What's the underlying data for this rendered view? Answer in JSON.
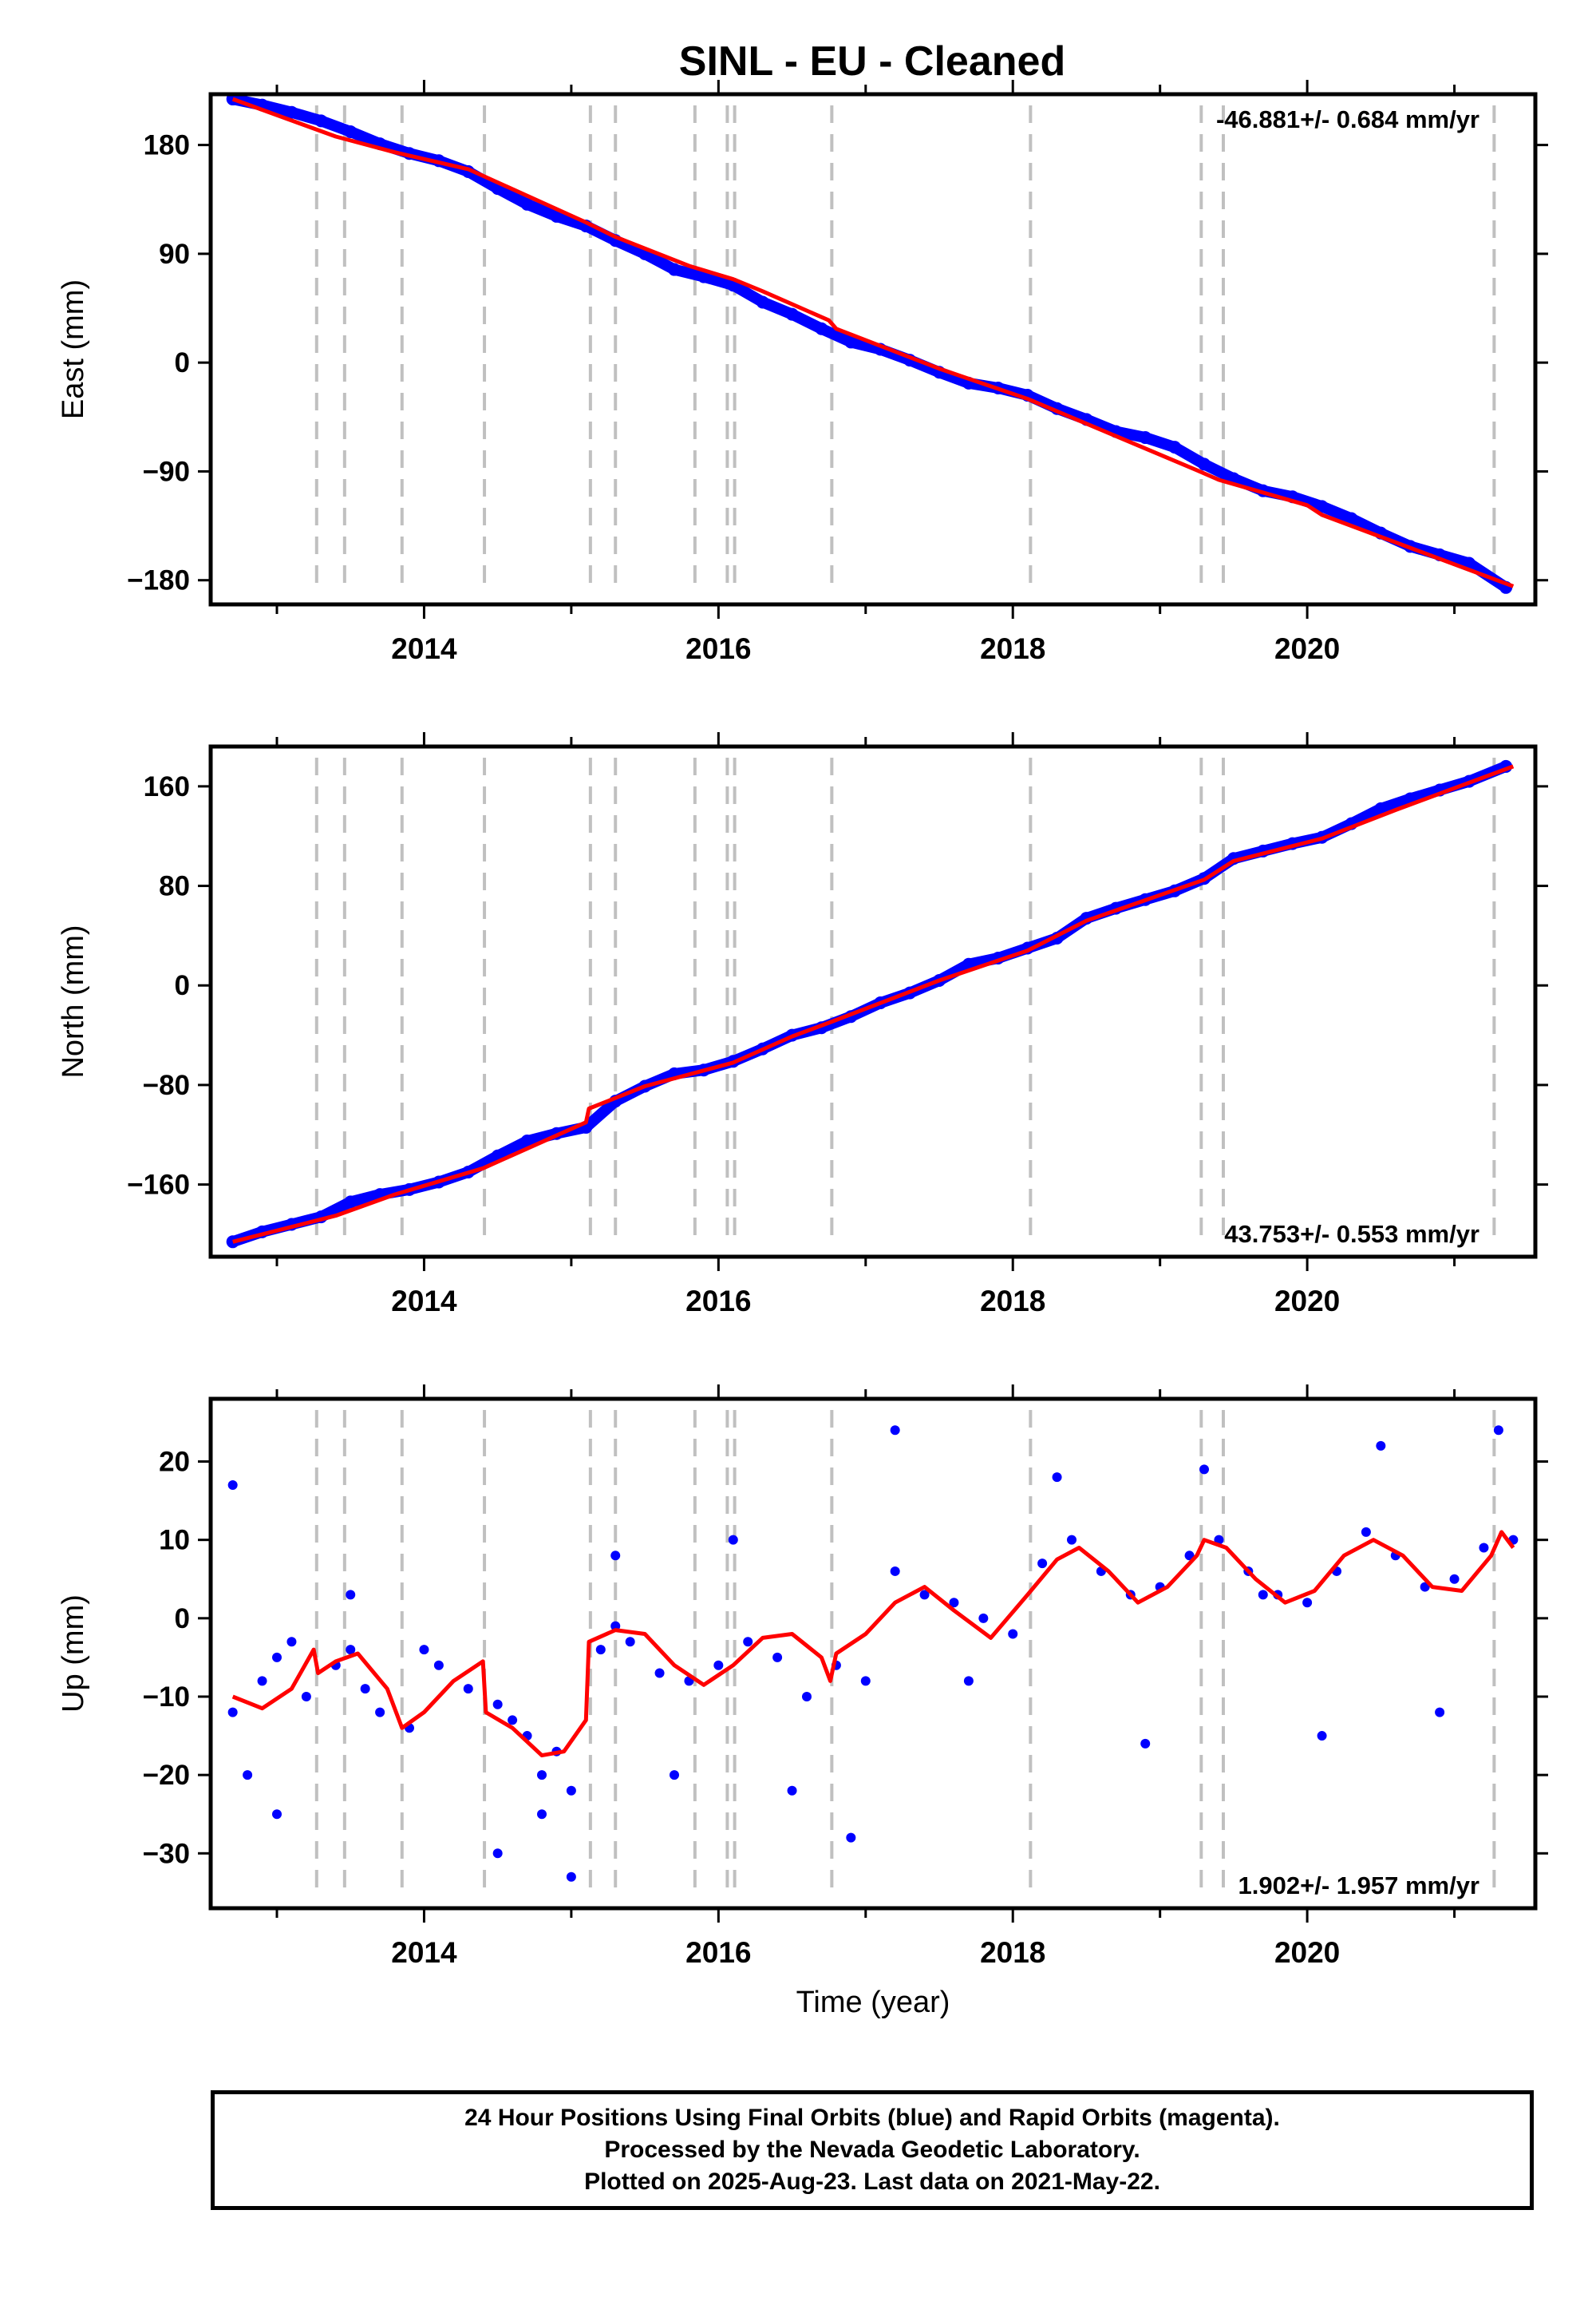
{
  "title": "SINL  - EU - Cleaned",
  "colors": {
    "data": "#0000ff",
    "model": "#ff0000",
    "offset": "#c0c0c0",
    "frame": "#000000"
  },
  "chart_data": [
    {
      "type": "scatter",
      "component": "east",
      "ylabel": "East (mm)",
      "xlim": [
        2012.55,
        2021.55
      ],
      "ylim": [
        -200,
        222
      ],
      "yticks": [
        180,
        90,
        0,
        -90,
        -180
      ],
      "xticks": [
        2014,
        2016,
        2018,
        2020
      ],
      "rate_label": "-46.881+/- 0.684 mm/yr",
      "rate_position": "top-right",
      "series": [
        {
          "kind": "points",
          "x": [
            2012.7,
            2012.9,
            2013.1,
            2013.3,
            2013.5,
            2013.7,
            2013.9,
            2014.1,
            2014.3,
            2014.5,
            2014.7,
            2014.9,
            2015.1,
            2015.3,
            2015.5,
            2015.7,
            2015.9,
            2016.1,
            2016.3,
            2016.5,
            2016.7,
            2016.9,
            2017.1,
            2017.3,
            2017.5,
            2017.7,
            2017.9,
            2018.1,
            2018.3,
            2018.5,
            2018.7,
            2018.9,
            2019.1,
            2019.3,
            2019.5,
            2019.7,
            2019.9,
            2020.1,
            2020.3,
            2020.5,
            2020.7,
            2020.9,
            2021.1,
            2021.35
          ],
          "y": [
            218,
            213,
            207,
            200,
            191,
            181,
            173,
            167,
            158,
            144,
            131,
            121,
            113,
            101,
            90,
            77,
            71,
            64,
            50,
            40,
            28,
            17,
            11,
            2,
            -8,
            -17,
            -21,
            -27,
            -38,
            -47,
            -57,
            -62,
            -70,
            -84,
            -96,
            -106,
            -111,
            -119,
            -129,
            -141,
            -152,
            -159,
            -166,
            -186
          ]
        },
        {
          "kind": "line",
          "x": [
            2012.7,
            2013.4,
            2013.8,
            2014.3,
            2015.1,
            2015.3,
            2015.8,
            2016.1,
            2016.3,
            2016.75,
            2016.8,
            2017.5,
            2018.1,
            2019.25,
            2019.4,
            2020.0,
            2020.1,
            2021.4
          ],
          "y": [
            218,
            187,
            174,
            160,
            116,
            104,
            80,
            69,
            59,
            35,
            28,
            -5,
            -30,
            -89,
            -97,
            -118,
            -126,
            -185
          ]
        }
      ]
    },
    {
      "type": "scatter",
      "component": "north",
      "ylabel": "North (mm)",
      "xlim": [
        2012.55,
        2021.55
      ],
      "ylim": [
        -218,
        192
      ],
      "yticks": [
        160,
        80,
        0,
        -80,
        -160
      ],
      "xticks": [
        2014,
        2016,
        2018,
        2020
      ],
      "rate_label": "43.753+/- 0.553 mm/yr",
      "rate_position": "bottom-right",
      "series": [
        {
          "kind": "points",
          "x": [
            2012.7,
            2012.9,
            2013.1,
            2013.3,
            2013.5,
            2013.7,
            2013.9,
            2014.1,
            2014.3,
            2014.5,
            2014.7,
            2014.9,
            2015.1,
            2015.3,
            2015.5,
            2015.7,
            2015.9,
            2016.1,
            2016.3,
            2016.5,
            2016.7,
            2016.9,
            2017.1,
            2017.3,
            2017.5,
            2017.7,
            2017.9,
            2018.1,
            2018.3,
            2018.5,
            2018.7,
            2018.9,
            2019.1,
            2019.3,
            2019.5,
            2019.7,
            2019.9,
            2020.1,
            2020.3,
            2020.5,
            2020.7,
            2020.9,
            2021.1,
            2021.35
          ],
          "y": [
            -206,
            -198,
            -192,
            -186,
            -174,
            -168,
            -164,
            -158,
            -150,
            -137,
            -125,
            -119,
            -114,
            -93,
            -81,
            -71,
            -68,
            -61,
            -51,
            -40,
            -34,
            -25,
            -14,
            -6,
            4,
            17,
            22,
            30,
            38,
            54,
            62,
            69,
            76,
            86,
            102,
            108,
            114,
            119,
            130,
            142,
            150,
            157,
            164,
            176
          ]
        },
        {
          "kind": "line",
          "x": [
            2012.7,
            2013.4,
            2013.8,
            2014.4,
            2015.1,
            2015.12,
            2015.5,
            2016.1,
            2016.5,
            2016.75,
            2017.5,
            2018.1,
            2018.5,
            2019.3,
            2019.5,
            2020.1,
            2020.6,
            2021.4
          ],
          "y": [
            -206,
            -185,
            -168,
            -147,
            -110,
            -99,
            -81,
            -62,
            -41,
            -30,
            4,
            28,
            52,
            85,
            100,
            118,
            141,
            176
          ]
        }
      ]
    },
    {
      "type": "scatter",
      "component": "up",
      "ylabel": "Up (mm)",
      "xlabel": "Time (year)",
      "xlim": [
        2012.55,
        2021.55
      ],
      "ylim": [
        -37,
        28
      ],
      "yticks": [
        20,
        10,
        0,
        -10,
        -20,
        -30
      ],
      "xticks": [
        2014,
        2016,
        2018,
        2020
      ],
      "rate_label": "1.902+/- 1.957 mm/yr",
      "rate_position": "bottom-right",
      "series": [
        {
          "kind": "points",
          "x": [
            2012.7,
            2012.8,
            2012.9,
            2013.0,
            2013.1,
            2013.2,
            2013.4,
            2013.5,
            2013.6,
            2013.7,
            2013.9,
            2014.1,
            2014.3,
            2014.5,
            2014.6,
            2014.7,
            2014.8,
            2014.9,
            2015.0,
            2015.2,
            2015.3,
            2015.4,
            2015.6,
            2015.8,
            2016.0,
            2016.2,
            2016.4,
            2016.6,
            2016.8,
            2017.0,
            2017.2,
            2017.4,
            2017.6,
            2017.8,
            2018.0,
            2018.2,
            2018.4,
            2018.6,
            2018.8,
            2019.0,
            2019.2,
            2019.4,
            2019.6,
            2019.8,
            2020.0,
            2020.2,
            2020.4,
            2020.6,
            2020.8,
            2021.0,
            2021.2,
            2021.4,
            2012.7,
            2013.0,
            2013.5,
            2014.0,
            2014.5,
            2014.8,
            2015.0,
            2015.3,
            2015.7,
            2016.1,
            2016.5,
            2016.9,
            2017.2,
            2017.7,
            2018.3,
            2018.9,
            2019.3,
            2019.7,
            2020.1,
            2020.5,
            2020.9,
            2021.3
          ],
          "y": [
            -12,
            -20,
            -8,
            -5,
            -3,
            -10,
            -6,
            -4,
            -9,
            -12,
            -14,
            -6,
            -9,
            -11,
            -13,
            -15,
            -20,
            -17,
            -22,
            -4,
            -1,
            -3,
            -7,
            -8,
            -6,
            -3,
            -5,
            -10,
            -6,
            -8,
            6,
            3,
            2,
            0,
            -2,
            7,
            10,
            6,
            3,
            4,
            8,
            10,
            6,
            3,
            2,
            6,
            11,
            8,
            4,
            5,
            9,
            10,
            17,
            -25,
            3,
            -4,
            -30,
            -25,
            -33,
            8,
            -20,
            10,
            -22,
            -28,
            24,
            -8,
            18,
            -16,
            19,
            3,
            -15,
            22,
            -12,
            24
          ]
        },
        {
          "kind": "line",
          "x": [
            2012.7,
            2012.9,
            2013.1,
            2013.25,
            2013.28,
            2013.4,
            2013.55,
            2013.75,
            2013.85,
            2014.0,
            2014.2,
            2014.4,
            2014.42,
            2014.6,
            2014.8,
            2014.95,
            2015.1,
            2015.12,
            2015.3,
            2015.5,
            2015.7,
            2015.9,
            2016.1,
            2016.3,
            2016.5,
            2016.7,
            2016.76,
            2016.8,
            2017.0,
            2017.2,
            2017.4,
            2017.6,
            2017.85,
            2018.1,
            2018.3,
            2018.45,
            2018.65,
            2018.85,
            2019.05,
            2019.25,
            2019.3,
            2019.45,
            2019.65,
            2019.85,
            2020.05,
            2020.25,
            2020.45,
            2020.65,
            2020.85,
            2021.05,
            2021.25,
            2021.32,
            2021.4
          ],
          "y": [
            -10,
            -11.5,
            -9,
            -4,
            -7,
            -5.5,
            -4.5,
            -9,
            -14,
            -12,
            -8,
            -5.5,
            -12,
            -14,
            -17.5,
            -17,
            -13,
            -3,
            -1.5,
            -2,
            -6,
            -8.5,
            -6,
            -2.5,
            -2,
            -5,
            -8,
            -4.5,
            -2,
            2,
            4,
            1,
            -2.5,
            3,
            7.5,
            9,
            6,
            2,
            4,
            8,
            10,
            9,
            5,
            2,
            3.5,
            8,
            10,
            8,
            4,
            3.5,
            8,
            11,
            9
          ]
        }
      ]
    }
  ],
  "offset_epochs": [
    2013.27,
    2013.46,
    2013.85,
    2014.41,
    2015.13,
    2015.3,
    2015.84,
    2016.06,
    2016.11,
    2016.77,
    2018.12,
    2019.28,
    2019.43,
    2021.27
  ],
  "footer": {
    "line1": "24 Hour Positions Using Final Orbits (blue) and Rapid Orbits (magenta).",
    "line2": "Processed by the Nevada Geodetic Laboratory.",
    "line3": "Plotted on 2025-Aug-23. Last data on 2021-May-22."
  }
}
